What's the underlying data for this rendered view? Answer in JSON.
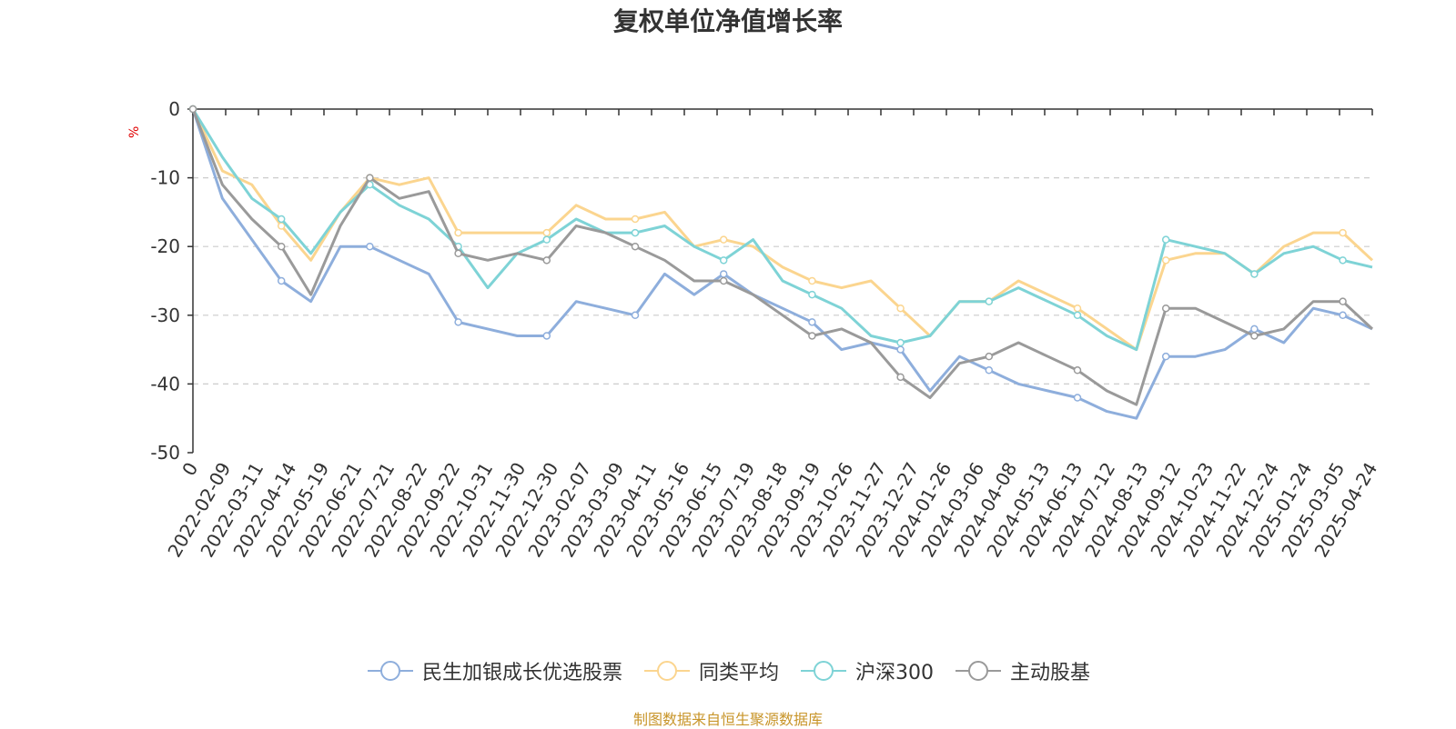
{
  "chart_data": {
    "type": "line",
    "title": "复权单位净值增长率",
    "ylabel": "%",
    "ylim": [
      -50,
      0
    ],
    "yticks": [
      0,
      -10,
      -20,
      -30,
      -40,
      -50
    ],
    "grid": "y dashed",
    "legend_position": "bottom",
    "x_tick_labels": [
      "0",
      "2022-02-09",
      "2022-03-11",
      "2022-04-14",
      "2022-05-19",
      "2022-06-21",
      "2022-07-21",
      "2022-08-22",
      "2022-09-22",
      "2022-10-31",
      "2022-11-30",
      "2022-12-30",
      "2023-02-07",
      "2023-03-09",
      "2023-04-11",
      "2023-05-16",
      "2023-06-15",
      "2023-07-19",
      "2023-08-18",
      "2023-09-19",
      "2023-10-26",
      "2023-11-27",
      "2023-12-27",
      "2024-01-26",
      "2024-03-06",
      "2024-04-08",
      "2024-05-13",
      "2024-06-13",
      "2024-07-12",
      "2024-08-13",
      "2024-09-12",
      "2024-10-23",
      "2024-11-22",
      "2024-12-24",
      "2025-01-24",
      "2025-03-05",
      "2025-04-24"
    ],
    "series": [
      {
        "name": "民生加银成长优选股票",
        "color": "#8eaedc",
        "values": [
          0,
          -13,
          -19,
          -25,
          -28,
          -20,
          -20,
          -22,
          -24,
          -31,
          -32,
          -33,
          -33,
          -28,
          -29,
          -30,
          -24,
          -27,
          -24,
          -27,
          -29,
          -31,
          -35,
          -34,
          -35,
          -41,
          -36,
          -38,
          -40,
          -41,
          -42,
          -44,
          -45,
          -36,
          -36,
          -35,
          -32,
          -34,
          -29,
          -30,
          -32
        ]
      },
      {
        "name": "同类平均",
        "color": "#fbd58f",
        "values": [
          0,
          -9,
          -11,
          -17,
          -22,
          -15,
          -10,
          -11,
          -10,
          -18,
          -18,
          -18,
          -18,
          -14,
          -16,
          -16,
          -15,
          -20,
          -19,
          -20,
          -23,
          -25,
          -26,
          -25,
          -29,
          -33,
          -28,
          -28,
          -25,
          -27,
          -29,
          -32,
          -35,
          -22,
          -21,
          -21,
          -24,
          -20,
          -18,
          -18,
          -22
        ]
      },
      {
        "name": "沪深300",
        "color": "#7ed3d6",
        "values": [
          0,
          -7,
          -13,
          -16,
          -21,
          -15,
          -11,
          -14,
          -16,
          -20,
          -26,
          -21,
          -19,
          -16,
          -18,
          -18,
          -17,
          -20,
          -22,
          -19,
          -25,
          -27,
          -29,
          -33,
          -34,
          -33,
          -28,
          -28,
          -26,
          -28,
          -30,
          -33,
          -35,
          -19,
          -20,
          -21,
          -24,
          -21,
          -20,
          -22,
          -23
        ]
      },
      {
        "name": "主动股基",
        "color": "#9a9a9a",
        "values": [
          0,
          -11,
          -16,
          -20,
          -27,
          -17,
          -10,
          -13,
          -12,
          -21,
          -22,
          -21,
          -22,
          -17,
          -18,
          -20,
          -22,
          -25,
          -25,
          -27,
          -30,
          -33,
          -32,
          -34,
          -39,
          -42,
          -37,
          -36,
          -34,
          -36,
          -38,
          -41,
          -43,
          -29,
          -29,
          -31,
          -33,
          -32,
          -28,
          -28,
          -32
        ]
      }
    ]
  },
  "credit": "制图数据来自恒生聚源数据库"
}
